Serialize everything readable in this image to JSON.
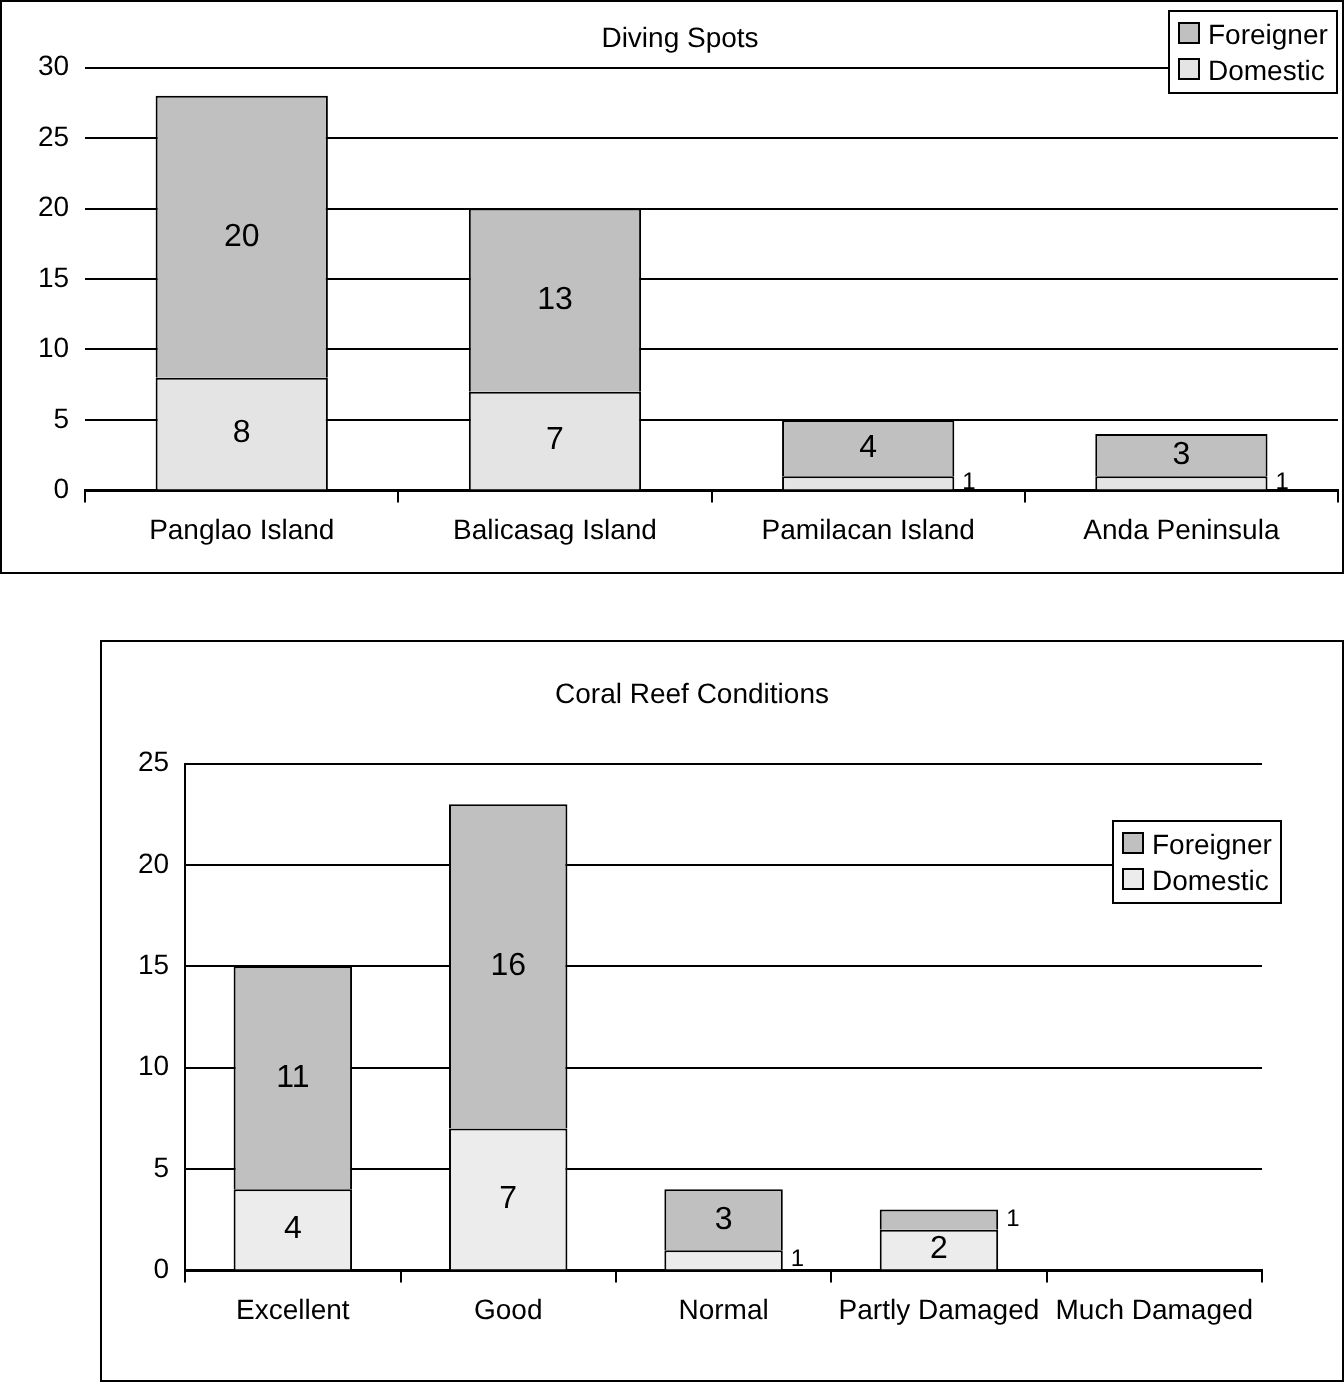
{
  "chart_data": [
    {
      "type": "bar",
      "title": "Diving Spots",
      "categories": [
        "Panglao Island",
        "Balicasag Island",
        "Pamilacan Island",
        "Anda Peninsula"
      ],
      "stacked": true,
      "series": [
        {
          "name": "Domestic",
          "color": "#e4e4e4",
          "values": [
            8,
            7,
            1,
            1
          ]
        },
        {
          "name": "Foreigner",
          "color": "#c0c0c0",
          "values": [
            20,
            13,
            4,
            3
          ]
        }
      ],
      "ylim": [
        0,
        30
      ],
      "yticks": [
        0,
        5,
        10,
        15,
        20,
        25,
        30
      ],
      "grid": "y",
      "legend": "top right",
      "data_labels": true
    },
    {
      "type": "bar",
      "title": "Coral Reef Conditions",
      "categories": [
        "Excellent",
        "Good",
        "Normal",
        "Partly Damaged",
        "Much Damaged"
      ],
      "stacked": true,
      "series": [
        {
          "name": "Domestic",
          "color": "#ececec",
          "values": [
            4,
            7,
            1,
            2,
            null
          ]
        },
        {
          "name": "Foreigner",
          "color": "#c0c0c0",
          "values": [
            11,
            16,
            3,
            1,
            null
          ]
        }
      ],
      "ylim": [
        0,
        25
      ],
      "yticks": [
        0,
        5,
        10,
        15,
        20,
        25
      ],
      "grid": "y",
      "legend": "top right",
      "data_labels": true
    }
  ]
}
